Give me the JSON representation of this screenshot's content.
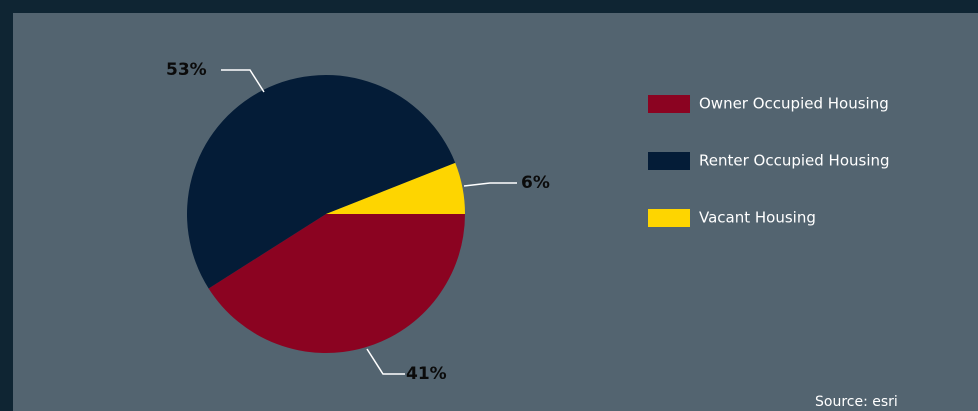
{
  "chart_data": {
    "type": "pie",
    "slices": [
      {
        "label": "Owner Occupied Housing",
        "value": 41,
        "display": "41%",
        "color": "#8b0321"
      },
      {
        "label": "Renter Occupied Housing",
        "value": 53,
        "display": "53%",
        "color": "#041c37"
      },
      {
        "label": "Vacant Housing",
        "value": 6,
        "display": "6%",
        "color": "#fed500"
      }
    ],
    "legend_position": "right",
    "source": "Source: esri"
  }
}
